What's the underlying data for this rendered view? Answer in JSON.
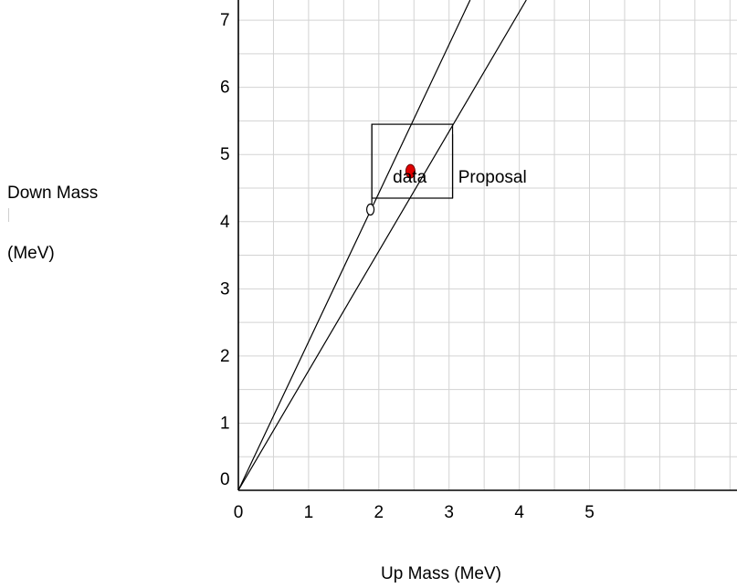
{
  "chart_data": {
    "type": "line",
    "title": "",
    "xlabel": "Up Mass (MeV)",
    "ylabel_lines": [
      "Down Mass",
      "(MeV)"
    ],
    "xlim": [
      0,
      7.1
    ],
    "ylim": [
      0,
      7.3
    ],
    "x_ticks": [
      0,
      1,
      2,
      3,
      4,
      5
    ],
    "y_ticks": [
      0,
      1,
      2,
      3,
      4,
      5,
      6,
      7
    ],
    "minor_grid_step": 0.5,
    "grid": true,
    "colors": {
      "grid": "#d3d3d3",
      "axis": "#000000",
      "data_point": "#e00000"
    },
    "series": [
      {
        "label": "",
        "slope": 2.25,
        "x": [
          0,
          3.3
        ],
        "y": [
          0,
          7.3
        ]
      },
      {
        "label": "",
        "slope": 1.78,
        "x": [
          0,
          4.1
        ],
        "y": [
          0,
          7.3
        ]
      }
    ],
    "boxes": [
      {
        "x": [
          1.9,
          3.05
        ],
        "y": [
          4.35,
          5.45
        ]
      }
    ],
    "range_bars": [
      {
        "x": 1.9,
        "y": [
          4.1,
          5.45
        ]
      },
      {
        "x": 3.05,
        "y": [
          4.35,
          5.3
        ]
      }
    ],
    "points": [
      {
        "label": "data",
        "x": 2.45,
        "y": 4.75,
        "filled": true
      },
      {
        "label": "",
        "x": 1.88,
        "y": 4.18,
        "filled": false
      }
    ],
    "annotations": [
      {
        "text": "data",
        "x": 2.2,
        "y": 4.58
      },
      {
        "text": "Proposal",
        "x": 3.13,
        "y": 4.58
      }
    ]
  }
}
